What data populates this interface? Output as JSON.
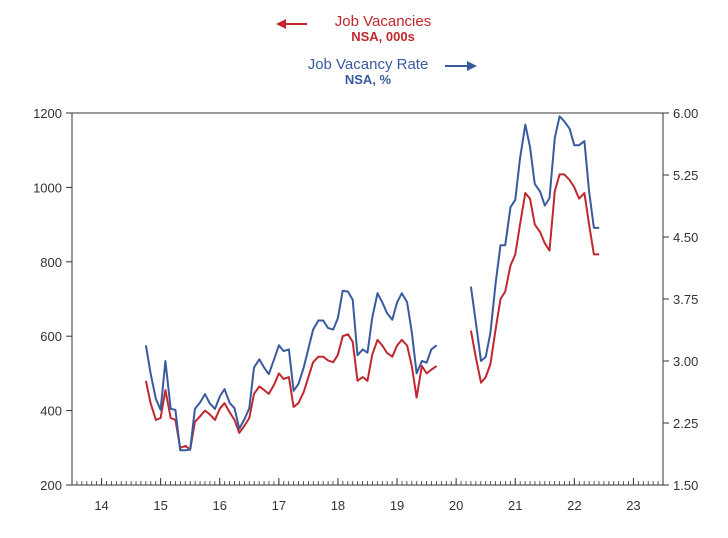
{
  "chart_data": {
    "type": "line",
    "legend": {
      "left_series": {
        "label": "Job Vacancies",
        "unit": "NSA, 000s",
        "arrow": "left"
      },
      "right_series": {
        "label": "Job Vacancy Rate",
        "unit": "NSA, %",
        "arrow": "right"
      }
    },
    "x_axis": {
      "ticks": [
        "14",
        "15",
        "16",
        "17",
        "18",
        "19",
        "20",
        "21",
        "22",
        "23"
      ],
      "range": [
        2013.5,
        2023.5
      ]
    },
    "y_left": {
      "ticks": [
        "200",
        "400",
        "600",
        "800",
        "1000",
        "1200"
      ],
      "range": [
        200,
        1200
      ]
    },
    "y_right": {
      "ticks": [
        "1.50",
        "2.25",
        "3.00",
        "3.75",
        "4.50",
        "5.25",
        "6.00"
      ],
      "range": [
        1.5,
        6.0
      ]
    },
    "colors": {
      "vacancies": "#c0282e",
      "rate": "#3a5a9e"
    },
    "series": [
      {
        "name": "Job Vacancies",
        "axis": "left",
        "segments": [
          {
            "x": [
              2014.75,
              2014.83,
              2014.92,
              2015.0,
              2015.08,
              2015.17,
              2015.25,
              2015.33,
              2015.42,
              2015.5,
              2015.58,
              2015.67,
              2015.75,
              2015.83,
              2015.92,
              2016.0,
              2016.08,
              2016.17,
              2016.25,
              2016.33,
              2016.42,
              2016.5,
              2016.58,
              2016.67,
              2016.75,
              2016.83,
              2016.92,
              2017.0,
              2017.08,
              2017.17,
              2017.25,
              2017.33,
              2017.42,
              2017.5,
              2017.58,
              2017.67,
              2017.75,
              2017.83,
              2017.92,
              2018.0,
              2018.08,
              2018.17,
              2018.25,
              2018.33,
              2018.42,
              2018.5,
              2018.58,
              2018.67,
              2018.75,
              2018.83,
              2018.92,
              2019.0,
              2019.08,
              2019.17,
              2019.25,
              2019.33,
              2019.42,
              2019.5,
              2019.58,
              2019.67
            ],
            "y": [
              480,
              420,
              375,
              380,
              455,
              380,
              375,
              300,
              305,
              295,
              370,
              385,
              400,
              390,
              375,
              405,
              420,
              395,
              375,
              340,
              360,
              380,
              445,
              465,
              455,
              445,
              470,
              500,
              485,
              490,
              410,
              420,
              450,
              490,
              530,
              545,
              545,
              535,
              530,
              550,
              600,
              605,
              585,
              480,
              490,
              480,
              550,
              590,
              575,
              555,
              545,
              575,
              590,
              575,
              520,
              435,
              520,
              500,
              510,
              520
            ]
          },
          {
            "x": [
              2020.25,
              2020.33,
              2020.42,
              2020.5,
              2020.58,
              2020.67,
              2020.75,
              2020.83,
              2020.92,
              2021.0,
              2021.08,
              2021.17,
              2021.25,
              2021.33,
              2021.42,
              2021.5,
              2021.58,
              2021.67,
              2021.75,
              2021.83,
              2021.92,
              2022.0,
              2022.08,
              2022.17,
              2022.25,
              2022.33,
              2022.42
            ],
            "y": [
              615,
              545,
              475,
              490,
              525,
              620,
              700,
              720,
              790,
              820,
              900,
              985,
              970,
              900,
              880,
              850,
              830,
              990,
              1035,
              1035,
              1020,
              1000,
              970,
              985,
              900,
              820,
              820
            ]
          }
        ]
      },
      {
        "name": "Job Vacancy Rate",
        "axis": "right",
        "segments": [
          {
            "x": [
              2014.75,
              2014.83,
              2014.92,
              2015.0,
              2015.08,
              2015.17,
              2015.25,
              2015.33,
              2015.42,
              2015.5,
              2015.58,
              2015.67,
              2015.75,
              2015.83,
              2015.92,
              2016.0,
              2016.08,
              2016.17,
              2016.25,
              2016.33,
              2016.42,
              2016.5,
              2016.58,
              2016.67,
              2016.75,
              2016.83,
              2016.92,
              2017.0,
              2017.08,
              2017.17,
              2017.25,
              2017.33,
              2017.42,
              2017.5,
              2017.58,
              2017.67,
              2017.75,
              2017.83,
              2017.92,
              2018.0,
              2018.08,
              2018.17,
              2018.25,
              2018.33,
              2018.42,
              2018.5,
              2018.58,
              2018.67,
              2018.75,
              2018.83,
              2018.92,
              2019.0,
              2019.08,
              2019.17,
              2019.25,
              2019.33,
              2019.42,
              2019.5,
              2019.58,
              2019.67
            ],
            "y": [
              3.19,
              2.85,
              2.54,
              2.41,
              3.0,
              2.42,
              2.41,
              1.92,
              1.92,
              1.93,
              2.42,
              2.5,
              2.6,
              2.49,
              2.42,
              2.57,
              2.66,
              2.49,
              2.43,
              2.18,
              2.3,
              2.43,
              2.92,
              3.02,
              2.92,
              2.84,
              3.02,
              3.19,
              3.12,
              3.14,
              2.64,
              2.72,
              2.92,
              3.15,
              3.38,
              3.49,
              3.49,
              3.4,
              3.38,
              3.52,
              3.85,
              3.84,
              3.74,
              3.07,
              3.14,
              3.1,
              3.52,
              3.82,
              3.71,
              3.58,
              3.5,
              3.71,
              3.82,
              3.71,
              3.35,
              2.85,
              3.0,
              2.98,
              3.14,
              3.19
            ]
          },
          {
            "x": [
              2020.25,
              2020.33,
              2020.42,
              2020.5,
              2020.58,
              2020.67,
              2020.75,
              2020.83,
              2020.92,
              2021.0,
              2021.08,
              2021.17,
              2021.25,
              2021.33,
              2021.42,
              2021.5,
              2021.58,
              2021.67,
              2021.75,
              2021.83,
              2021.92,
              2022.0,
              2022.08,
              2022.17,
              2022.25,
              2022.33,
              2022.42
            ],
            "y": [
              3.9,
              3.48,
              3.0,
              3.05,
              3.34,
              3.95,
              4.4,
              4.4,
              4.86,
              4.95,
              5.45,
              5.86,
              5.59,
              5.14,
              5.05,
              4.88,
              4.97,
              5.7,
              5.96,
              5.9,
              5.81,
              5.61,
              5.61,
              5.66,
              5.05,
              4.61,
              4.61
            ]
          }
        ]
      }
    ]
  }
}
